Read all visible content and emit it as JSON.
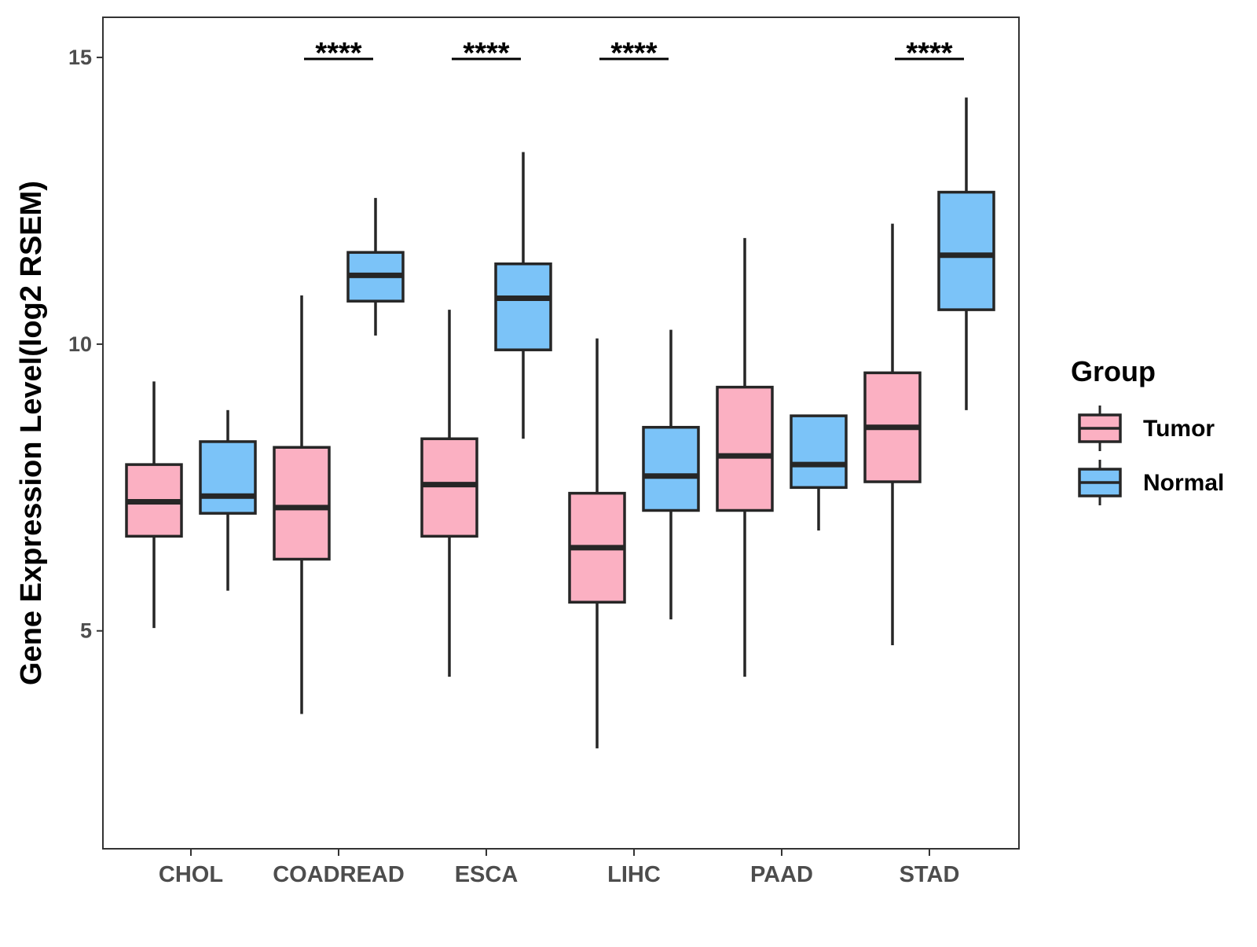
{
  "chart_data": {
    "type": "boxplot",
    "ylabel": "Gene Expression Level(log2 RSEM)",
    "yticks": [
      5,
      10,
      15
    ],
    "ylim": [
      1.2,
      15.7
    ],
    "categories": [
      "CHOL",
      "COADREAD",
      "ESCA",
      "LIHC",
      "PAAD",
      "STAD"
    ],
    "legend": {
      "title": "Group",
      "placement": "right",
      "entries": [
        {
          "label": "Tumor",
          "color": "#FBB0C2"
        },
        {
          "label": "Normal",
          "color": "#7BC3F8"
        }
      ]
    },
    "series": [
      {
        "name": "Tumor",
        "color": "#FBB0C2",
        "boxes": [
          {
            "whisker_low": 5.05,
            "q1": 6.65,
            "median": 7.25,
            "q3": 7.9,
            "whisker_high": 9.35
          },
          {
            "whisker_low": 3.55,
            "q1": 6.25,
            "median": 7.15,
            "q3": 8.2,
            "whisker_high": 10.85
          },
          {
            "whisker_low": 4.2,
            "q1": 6.65,
            "median": 7.55,
            "q3": 8.35,
            "whisker_high": 10.6
          },
          {
            "whisker_low": 2.95,
            "q1": 5.5,
            "median": 6.45,
            "q3": 7.4,
            "whisker_high": 10.1
          },
          {
            "whisker_low": 4.2,
            "q1": 7.1,
            "median": 8.05,
            "q3": 9.25,
            "whisker_high": 11.85
          },
          {
            "whisker_low": 4.75,
            "q1": 7.6,
            "median": 8.55,
            "q3": 9.5,
            "whisker_high": 12.1
          }
        ]
      },
      {
        "name": "Normal",
        "color": "#7BC3F8",
        "boxes": [
          {
            "whisker_low": 5.7,
            "q1": 7.05,
            "median": 7.35,
            "q3": 8.3,
            "whisker_high": 8.85
          },
          {
            "whisker_low": 10.15,
            "q1": 10.75,
            "median": 11.2,
            "q3": 11.6,
            "whisker_high": 12.55
          },
          {
            "whisker_low": 8.35,
            "q1": 9.9,
            "median": 10.8,
            "q3": 11.4,
            "whisker_high": 13.35
          },
          {
            "whisker_low": 5.2,
            "q1": 7.1,
            "median": 7.7,
            "q3": 8.55,
            "whisker_high": 10.25
          },
          {
            "whisker_low": 6.75,
            "q1": 7.5,
            "median": 7.9,
            "q3": 8.75,
            "whisker_high": 8.75
          },
          {
            "whisker_low": 8.85,
            "q1": 10.6,
            "median": 11.55,
            "q3": 12.65,
            "whisker_high": 14.3
          }
        ]
      }
    ],
    "significance": [
      {
        "category": "COADREAD",
        "label": "****"
      },
      {
        "category": "ESCA",
        "label": "****"
      },
      {
        "category": "LIHC",
        "label": "****"
      },
      {
        "category": "STAD",
        "label": "****"
      }
    ]
  }
}
